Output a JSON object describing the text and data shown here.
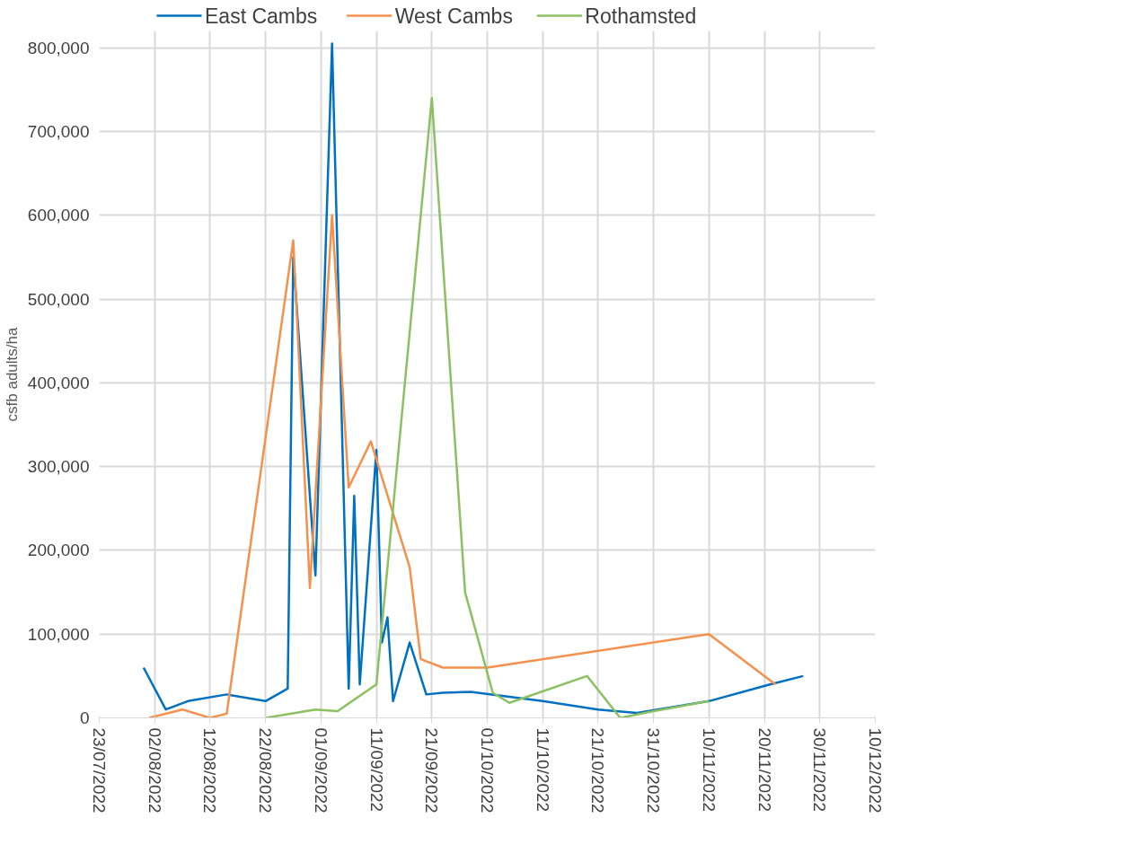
{
  "chart_data": {
    "type": "line",
    "ylabel": "csfb adults/ha",
    "legend": "top",
    "grid": true,
    "line_style": "solid",
    "marker": "none",
    "xlim": [
      "2022-07-23",
      "2022-12-10"
    ],
    "xticks": [
      {
        "value": "2022-07-23",
        "label": "23/07/2022"
      },
      {
        "value": "2022-08-02",
        "label": "02/08/2022"
      },
      {
        "value": "2022-08-12",
        "label": "12/08/2022"
      },
      {
        "value": "2022-08-22",
        "label": "22/08/2022"
      },
      {
        "value": "2022-09-01",
        "label": "01/09/2022"
      },
      {
        "value": "2022-09-11",
        "label": "11/09/2022"
      },
      {
        "value": "2022-09-21",
        "label": "21/09/2022"
      },
      {
        "value": "2022-10-01",
        "label": "01/10/2022"
      },
      {
        "value": "2022-10-11",
        "label": "11/10/2022"
      },
      {
        "value": "2022-10-21",
        "label": "21/10/2022"
      },
      {
        "value": "2022-10-31",
        "label": "31/10/2022"
      },
      {
        "value": "2022-11-10",
        "label": "10/11/2022"
      },
      {
        "value": "2022-11-20",
        "label": "20/11/2022"
      },
      {
        "value": "2022-11-30",
        "label": "30/11/2022"
      },
      {
        "value": "2022-12-10",
        "label": "10/12/2022"
      }
    ],
    "ylim": [
      0,
      820000
    ],
    "yticks": [
      0,
      {
        "value": 100000,
        "label": "100,000"
      },
      {
        "value": 200000,
        "label": "200,000"
      },
      {
        "value": 300000,
        "label": "300,000"
      },
      {
        "value": 400000,
        "label": "400,000"
      },
      {
        "value": 500000,
        "label": "500,000"
      },
      {
        "value": 600000,
        "label": "600,000"
      },
      {
        "value": 700000,
        "label": "700,000"
      },
      {
        "value": 800000,
        "label": "800,000"
      }
    ],
    "series": [
      {
        "name": "East Cambs",
        "color": "#0070c0",
        "x": [
          "2022-07-31",
          "2022-08-04",
          "2022-08-08",
          "2022-08-15",
          "2022-08-22",
          "2022-08-26",
          "2022-08-27",
          "2022-08-31",
          "2022-09-03",
          "2022-09-06",
          "2022-09-07",
          "2022-09-08",
          "2022-09-11",
          "2022-09-12",
          "2022-09-13",
          "2022-09-14",
          "2022-09-17",
          "2022-09-20",
          "2022-09-23",
          "2022-09-28",
          "2022-10-11",
          "2022-10-21",
          "2022-10-28",
          "2022-11-10",
          "2022-11-21",
          "2022-11-27"
        ],
        "values": [
          60000,
          10000,
          20000,
          28000,
          20000,
          35000,
          550000,
          170000,
          805000,
          35000,
          265000,
          40000,
          320000,
          90000,
          120000,
          20000,
          90000,
          28000,
          30000,
          31000,
          20000,
          10000,
          6000,
          20000,
          40000,
          50000
        ]
      },
      {
        "name": "West Cambs",
        "color": "#f4914c",
        "x": [
          "2022-08-01",
          "2022-08-07",
          "2022-08-12",
          "2022-08-15",
          "2022-08-27",
          "2022-08-30",
          "2022-09-03",
          "2022-09-06",
          "2022-09-10",
          "2022-09-17",
          "2022-09-19",
          "2022-09-23",
          "2022-10-01",
          "2022-11-10",
          "2022-11-22"
        ],
        "values": [
          0,
          10000,
          0,
          5000,
          570000,
          155000,
          600000,
          275000,
          330000,
          180000,
          70000,
          60000,
          60000,
          100000,
          40000
        ]
      },
      {
        "name": "Rothamsted",
        "color": "#8cc060",
        "x": [
          "2022-08-22",
          "2022-08-31",
          "2022-09-04",
          "2022-09-11",
          "2022-09-21",
          "2022-09-27",
          "2022-10-02",
          "2022-10-05",
          "2022-10-19",
          "2022-10-25",
          "2022-10-31",
          "2022-11-10"
        ],
        "values": [
          0,
          10000,
          8000,
          40000,
          740000,
          150000,
          30000,
          18000,
          50000,
          0,
          8000,
          20000
        ]
      }
    ]
  }
}
